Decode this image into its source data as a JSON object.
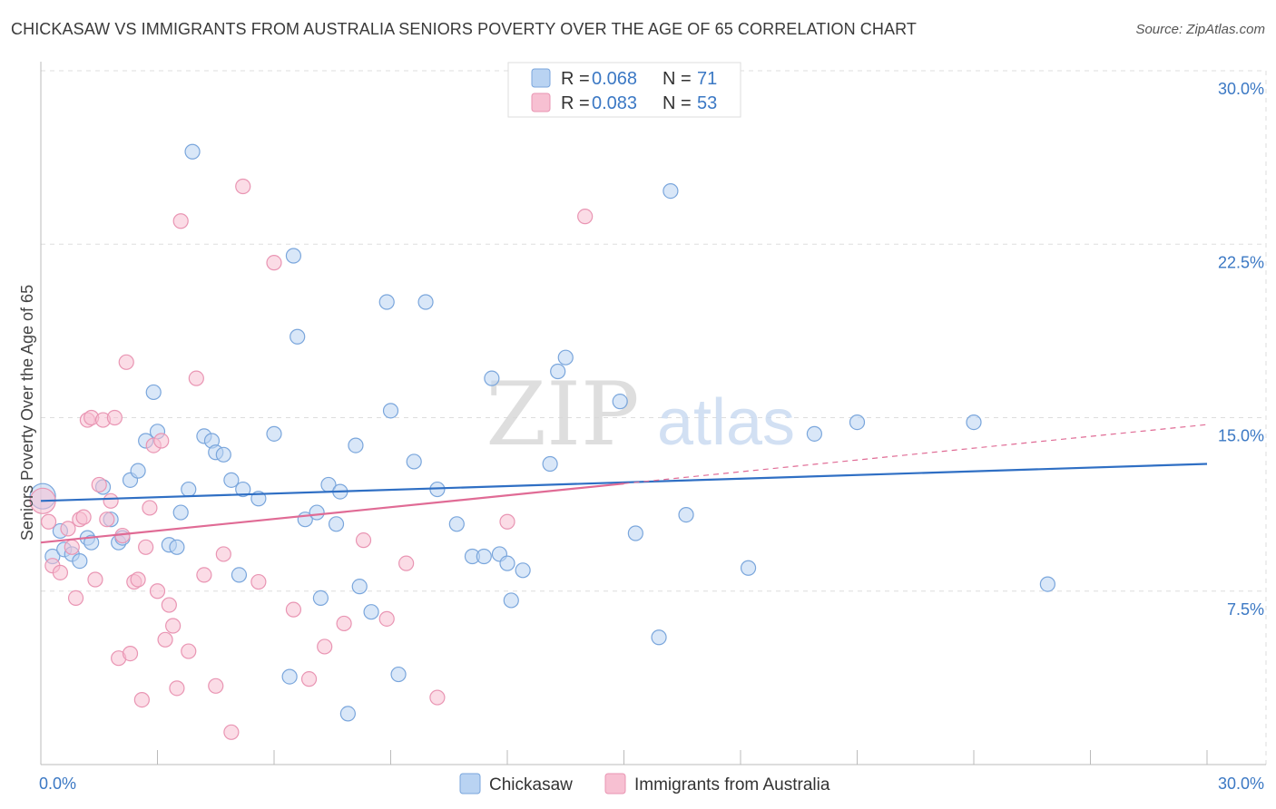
{
  "title": "CHICKASAW VS IMMIGRANTS FROM AUSTRALIA SENIORS POVERTY OVER THE AGE OF 65 CORRELATION CHART",
  "source": "Source: ZipAtlas.com",
  "watermark": {
    "zip": "ZIP",
    "atlas": "atlas"
  },
  "colors": {
    "blue_fill": "#b9d3f2",
    "blue_stroke": "#7aa6dc",
    "blue_line": "#2f6fc4",
    "pink_fill": "#f7c0d2",
    "pink_stroke": "#e995b3",
    "pink_line": "#e06b95",
    "grid": "#dddddd",
    "tick_text": "#3b78c4"
  },
  "legend": {
    "rows": [
      {
        "r_label": "R = ",
        "r_value": "0.068",
        "n_label": "N = ",
        "n_value": "71"
      },
      {
        "r_label": "R = ",
        "r_value": "0.083",
        "n_label": "N = ",
        "n_value": "53"
      }
    ]
  },
  "bottom_legend": [
    "Chickasaw",
    "Immigrants from Australia"
  ],
  "chart_data": {
    "type": "scatter",
    "title": "CHICKASAW VS IMMIGRANTS FROM AUSTRALIA SENIORS POVERTY OVER THE AGE OF 65 CORRELATION CHART",
    "xlabel": "",
    "ylabel": "Seniors Poverty Over the Age of 65",
    "xlim": [
      0,
      30
    ],
    "ylim": [
      0,
      30
    ],
    "x_tick_labels": [
      "0.0%",
      "30.0%"
    ],
    "y_ticks": [
      {
        "value": 30.0,
        "label": "30.0%"
      },
      {
        "value": 22.5,
        "label": "22.5%"
      },
      {
        "value": 15.0,
        "label": "15.0%"
      },
      {
        "value": 7.5,
        "label": "7.5%"
      }
    ],
    "grid": true,
    "legend_position": "top-center",
    "series": [
      {
        "name": "Chickasaw",
        "r": 0.068,
        "n": 71,
        "trend": {
          "x0": 0,
          "y0": 11.4,
          "x1": 30,
          "y1": 13.0,
          "dashed_from": null
        },
        "points": [
          [
            0.05,
            11.6
          ],
          [
            0.3,
            9.0
          ],
          [
            0.5,
            10.1
          ],
          [
            0.6,
            9.3
          ],
          [
            0.8,
            9.1
          ],
          [
            1.0,
            8.8
          ],
          [
            1.2,
            9.8
          ],
          [
            1.3,
            9.6
          ],
          [
            1.6,
            12.0
          ],
          [
            1.8,
            10.6
          ],
          [
            2.0,
            9.6
          ],
          [
            2.1,
            9.8
          ],
          [
            2.3,
            12.3
          ],
          [
            2.5,
            12.7
          ],
          [
            2.7,
            14.0
          ],
          [
            2.9,
            16.1
          ],
          [
            3.0,
            14.4
          ],
          [
            3.3,
            9.5
          ],
          [
            3.5,
            9.4
          ],
          [
            3.6,
            10.9
          ],
          [
            3.8,
            11.9
          ],
          [
            3.9,
            26.5
          ],
          [
            4.2,
            14.2
          ],
          [
            4.4,
            14.0
          ],
          [
            4.5,
            13.5
          ],
          [
            4.7,
            13.4
          ],
          [
            4.9,
            12.3
          ],
          [
            5.1,
            8.2
          ],
          [
            5.2,
            11.9
          ],
          [
            5.6,
            11.5
          ],
          [
            6.0,
            14.3
          ],
          [
            6.4,
            3.8
          ],
          [
            6.5,
            22.0
          ],
          [
            6.6,
            18.5
          ],
          [
            6.8,
            10.6
          ],
          [
            7.1,
            10.9
          ],
          [
            7.2,
            7.2
          ],
          [
            7.4,
            12.1
          ],
          [
            7.6,
            10.4
          ],
          [
            7.7,
            11.8
          ],
          [
            7.9,
            2.2
          ],
          [
            8.1,
            13.8
          ],
          [
            8.2,
            7.7
          ],
          [
            8.5,
            6.6
          ],
          [
            8.9,
            20.0
          ],
          [
            9.0,
            15.3
          ],
          [
            9.2,
            3.9
          ],
          [
            9.6,
            13.1
          ],
          [
            9.9,
            20.0
          ],
          [
            10.2,
            11.9
          ],
          [
            10.7,
            10.4
          ],
          [
            11.1,
            9.0
          ],
          [
            11.4,
            9.0
          ],
          [
            11.6,
            16.7
          ],
          [
            11.8,
            9.1
          ],
          [
            12.0,
            8.7
          ],
          [
            12.1,
            7.1
          ],
          [
            12.4,
            8.4
          ],
          [
            13.1,
            13.0
          ],
          [
            13.3,
            17.0
          ],
          [
            13.5,
            17.6
          ],
          [
            14.9,
            15.7
          ],
          [
            15.3,
            10.0
          ],
          [
            15.9,
            5.5
          ],
          [
            16.2,
            24.8
          ],
          [
            16.6,
            10.8
          ],
          [
            18.2,
            8.5
          ],
          [
            19.9,
            14.3
          ],
          [
            21.0,
            14.8
          ],
          [
            24.0,
            14.8
          ],
          [
            25.9,
            7.8
          ]
        ]
      },
      {
        "name": "Immigrants from Australia",
        "r": 0.083,
        "n": 53,
        "trend": {
          "x0": 0,
          "y0": 9.6,
          "x1": 30,
          "y1": 14.7,
          "dashed_from": 15.0
        },
        "points": [
          [
            0.05,
            11.4
          ],
          [
            0.2,
            10.5
          ],
          [
            0.3,
            8.6
          ],
          [
            0.5,
            8.3
          ],
          [
            0.7,
            10.2
          ],
          [
            0.8,
            9.4
          ],
          [
            0.9,
            7.2
          ],
          [
            1.0,
            10.6
          ],
          [
            1.1,
            10.7
          ],
          [
            1.2,
            14.9
          ],
          [
            1.3,
            15.0
          ],
          [
            1.4,
            8.0
          ],
          [
            1.5,
            12.1
          ],
          [
            1.6,
            14.9
          ],
          [
            1.7,
            10.6
          ],
          [
            1.8,
            11.4
          ],
          [
            1.9,
            15.0
          ],
          [
            2.0,
            4.6
          ],
          [
            2.1,
            9.9
          ],
          [
            2.2,
            17.4
          ],
          [
            2.3,
            4.8
          ],
          [
            2.4,
            7.9
          ],
          [
            2.5,
            8.0
          ],
          [
            2.6,
            2.8
          ],
          [
            2.7,
            9.4
          ],
          [
            2.8,
            11.1
          ],
          [
            2.9,
            13.8
          ],
          [
            3.0,
            7.5
          ],
          [
            3.1,
            14.0
          ],
          [
            3.2,
            5.4
          ],
          [
            3.3,
            6.9
          ],
          [
            3.4,
            6.0
          ],
          [
            3.5,
            3.3
          ],
          [
            3.6,
            23.5
          ],
          [
            3.8,
            4.9
          ],
          [
            4.0,
            16.7
          ],
          [
            4.2,
            8.2
          ],
          [
            4.5,
            3.4
          ],
          [
            4.7,
            9.1
          ],
          [
            4.9,
            1.4
          ],
          [
            5.2,
            25.0
          ],
          [
            5.6,
            7.9
          ],
          [
            6.0,
            21.7
          ],
          [
            6.5,
            6.7
          ],
          [
            6.9,
            3.7
          ],
          [
            7.3,
            5.1
          ],
          [
            7.8,
            6.1
          ],
          [
            8.3,
            9.7
          ],
          [
            8.9,
            6.3
          ],
          [
            9.4,
            8.7
          ],
          [
            10.2,
            2.9
          ],
          [
            12.0,
            10.5
          ],
          [
            14.0,
            23.7
          ]
        ]
      }
    ]
  }
}
